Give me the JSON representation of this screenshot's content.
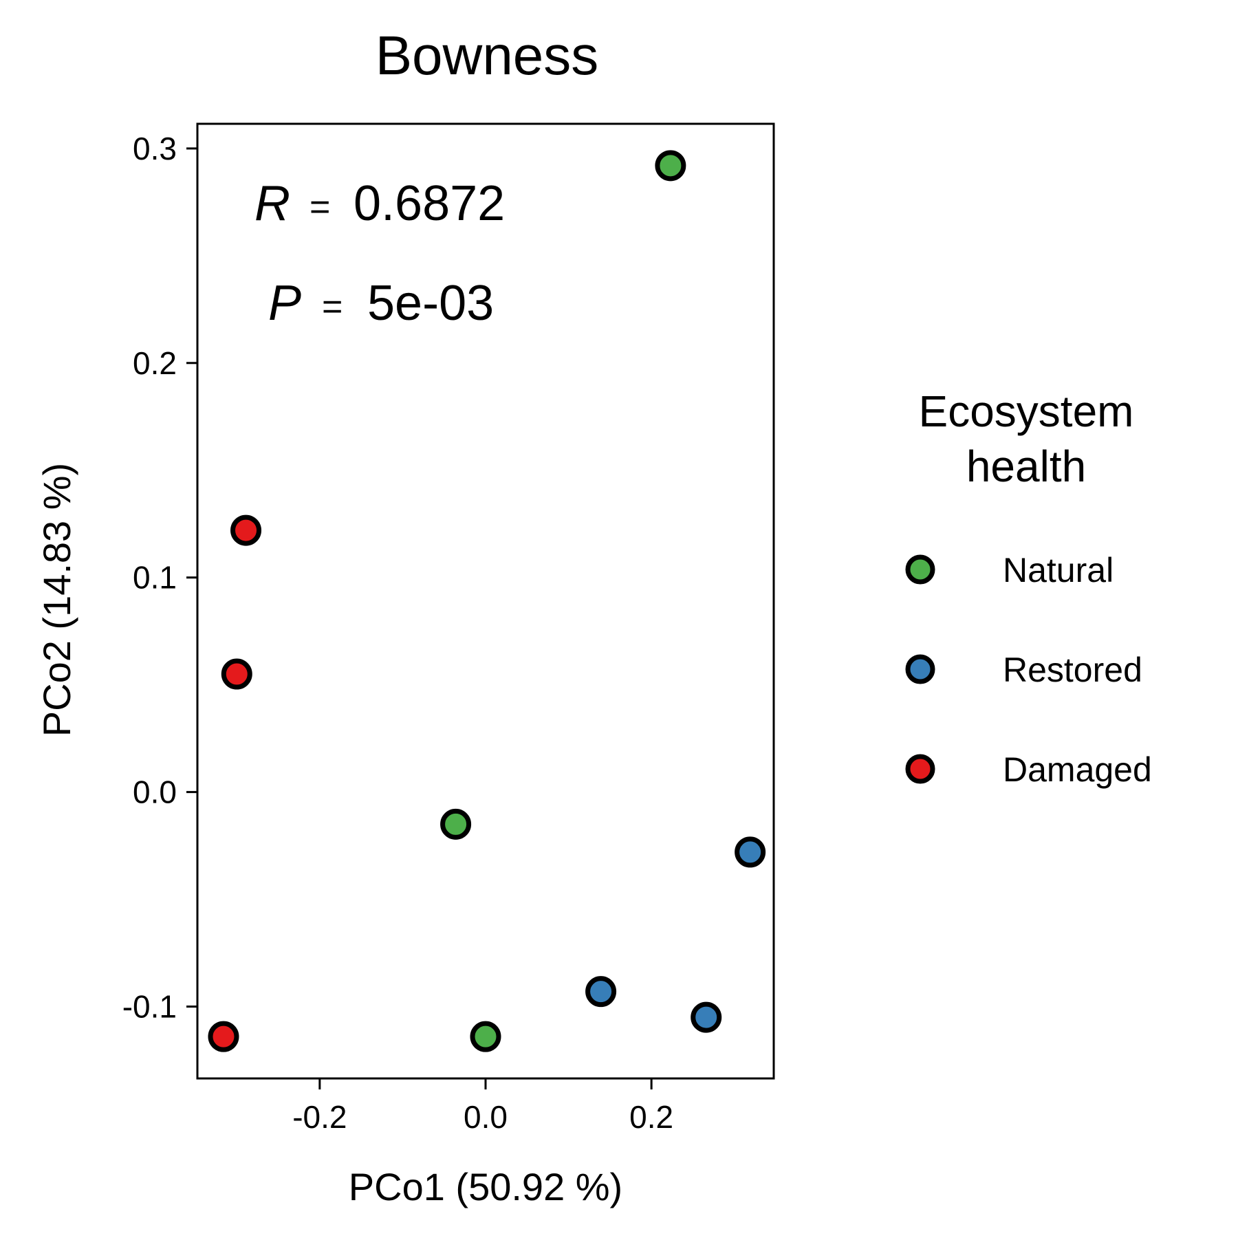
{
  "chart_data": {
    "type": "scatter",
    "title": "Bowness",
    "xlabel": "PCo1 (50.92 %)",
    "ylabel": "PCo2 (14.83 %)",
    "xlim": [
      -0.3475,
      0.3475
    ],
    "ylim": [
      -0.1335,
      0.3115
    ],
    "x_ticks": [
      {
        "value": -0.2,
        "label": "-0.2"
      },
      {
        "value": 0.0,
        "label": "0.0"
      },
      {
        "value": 0.2,
        "label": "0.2"
      }
    ],
    "y_ticks": [
      {
        "value": -0.1,
        "label": "-0.1"
      },
      {
        "value": 0.0,
        "label": "0.0"
      },
      {
        "value": 0.1,
        "label": "0.1"
      },
      {
        "value": 0.2,
        "label": "0.2"
      },
      {
        "value": 0.3,
        "label": "0.3"
      }
    ],
    "grid": false,
    "annotations": {
      "r_symbol": "R",
      "r_equals": "=",
      "r_value": "0.6872",
      "p_symbol": "P",
      "p_equals": "=",
      "p_value": "5e-03"
    },
    "legend": {
      "title_line1": "Ecosystem",
      "title_line2": "health",
      "placement": "right"
    },
    "series": [
      {
        "name": "Natural",
        "color": "#4daf4a",
        "points": [
          {
            "x": 0.223,
            "y": 0.292
          },
          {
            "x": -0.036,
            "y": -0.015
          },
          {
            "x": 0.0,
            "y": -0.114
          }
        ]
      },
      {
        "name": "Restored",
        "color": "#377eb8",
        "points": [
          {
            "x": 0.319,
            "y": -0.028
          },
          {
            "x": 0.139,
            "y": -0.093
          },
          {
            "x": 0.266,
            "y": -0.105
          }
        ]
      },
      {
        "name": "Damaged",
        "color": "#e41a1c",
        "points": [
          {
            "x": -0.289,
            "y": 0.122
          },
          {
            "x": -0.3,
            "y": 0.055
          },
          {
            "x": -0.316,
            "y": -0.114
          }
        ]
      }
    ]
  }
}
